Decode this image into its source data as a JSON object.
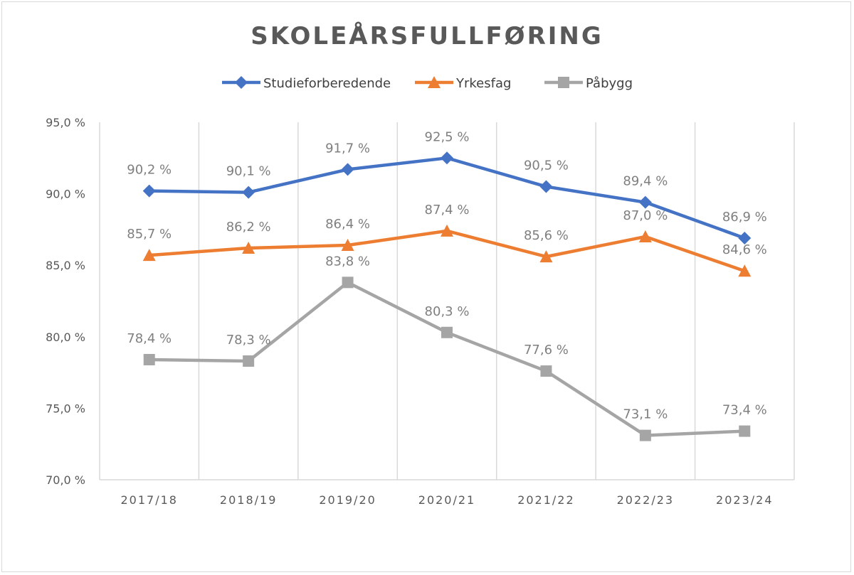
{
  "chart_data": {
    "type": "line",
    "title": "SKOLEÅRSFULLFØRING",
    "xlabel": "",
    "ylabel": "",
    "categories": [
      "2017/18",
      "2018/19",
      "2019/20",
      "2020/21",
      "2021/22",
      "2022/23",
      "2023/24"
    ],
    "ylim": [
      70,
      95
    ],
    "yticks": [
      70,
      75,
      80,
      85,
      90,
      95
    ],
    "ytick_labels": [
      "70,0 %",
      "75,0 %",
      "80,0 %",
      "85,0 %",
      "90,0 %",
      "95,0 %"
    ],
    "grid": "vertical",
    "legend_position": "top",
    "series": [
      {
        "name": "Studieforberedende",
        "color": "#4472c4",
        "marker": "diamond",
        "values": [
          90.2,
          90.1,
          91.7,
          92.5,
          90.5,
          89.4,
          86.9
        ],
        "labels": [
          "90,2 %",
          "90,1 %",
          "91,7 %",
          "92,5 %",
          "90,5 %",
          "89,4 %",
          "86,9 %"
        ]
      },
      {
        "name": "Yrkesfag",
        "color": "#ed7d31",
        "marker": "triangle",
        "values": [
          85.7,
          86.2,
          86.4,
          87.4,
          85.6,
          87.0,
          84.6
        ],
        "labels": [
          "85,7 %",
          "86,2 %",
          "86,4 %",
          "87,4 %",
          "85,6 %",
          "87,0 %",
          "84,6 %"
        ]
      },
      {
        "name": "Påbygg",
        "color": "#a5a5a5",
        "marker": "square",
        "values": [
          78.4,
          78.3,
          83.8,
          80.3,
          77.6,
          73.1,
          73.4
        ],
        "labels": [
          "78,4 %",
          "78,3 %",
          "83,8 %",
          "80,3 %",
          "77,6 %",
          "73,1 %",
          "73,4 %"
        ]
      }
    ]
  }
}
